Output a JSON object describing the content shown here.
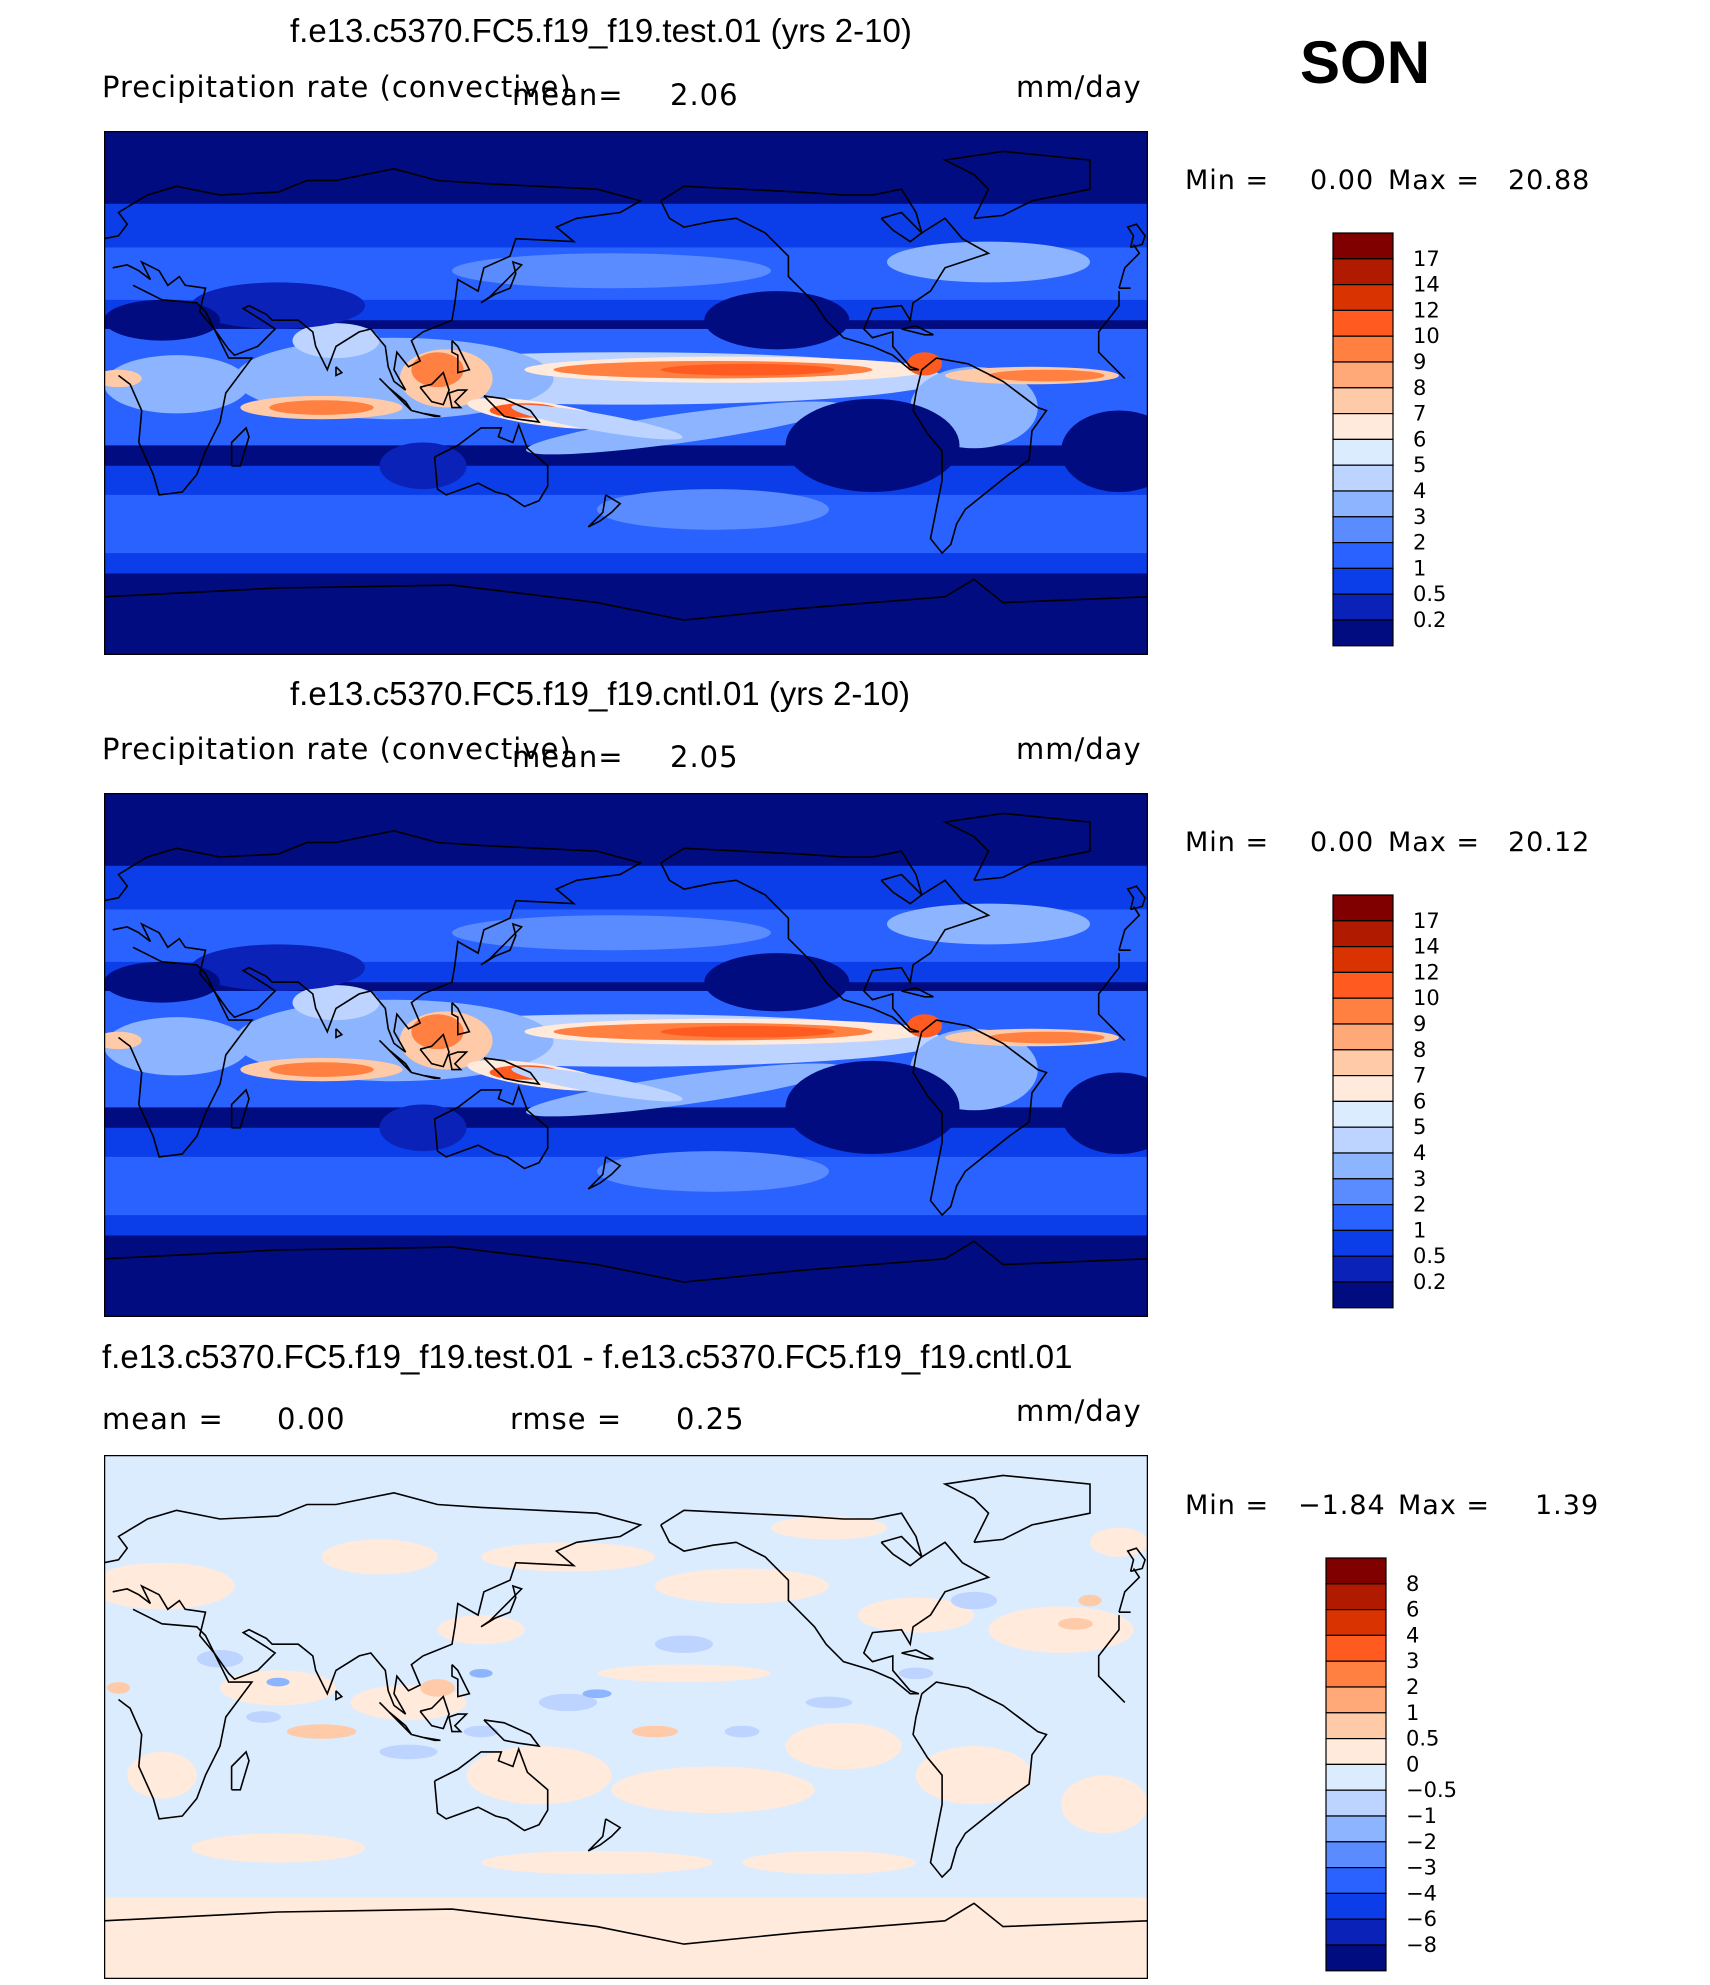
{
  "season": "SON",
  "panels": [
    {
      "title": "f.e13.c5370.FC5.f19_f19.test.01 (yrs 2-10)",
      "variable": "Precipitation rate (convective)",
      "mean_label": "mean=",
      "mean_value": "2.06",
      "units": "mm/day",
      "min_label": "Min =",
      "min_value": "0.00",
      "max_label": "Max =",
      "max_value": "20.88",
      "colorbar": {
        "labels": [
          "17",
          "14",
          "12",
          "10",
          "9",
          "8",
          "7",
          "6",
          "5",
          "4",
          "3",
          "2",
          "1",
          "0.5",
          "0.2"
        ],
        "colors": [
          "#800000",
          "#b01b00",
          "#d83300",
          "#ff5a20",
          "#ff8040",
          "#ffa878",
          "#ffcaa8",
          "#ffeadc",
          "#dcecff",
          "#bcd4ff",
          "#8cb4ff",
          "#5a8cff",
          "#2a62ff",
          "#0b3ee8",
          "#0a22b8",
          "#000c80"
        ]
      }
    },
    {
      "title": "f.e13.c5370.FC5.f19_f19.cntl.01 (yrs 2-10)",
      "variable": "Precipitation rate (convective)",
      "mean_label": "mean=",
      "mean_value": "2.05",
      "units": "mm/day",
      "min_label": "Min =",
      "min_value": "0.00",
      "max_label": "Max =",
      "max_value": "20.12",
      "colorbar": {
        "labels": [
          "17",
          "14",
          "12",
          "10",
          "9",
          "8",
          "7",
          "6",
          "5",
          "4",
          "3",
          "2",
          "1",
          "0.5",
          "0.2"
        ],
        "colors": [
          "#800000",
          "#b01b00",
          "#d83300",
          "#ff5a20",
          "#ff8040",
          "#ffa878",
          "#ffcaa8",
          "#ffeadc",
          "#dcecff",
          "#bcd4ff",
          "#8cb4ff",
          "#5a8cff",
          "#2a62ff",
          "#0b3ee8",
          "#0a22b8",
          "#000c80"
        ]
      }
    },
    {
      "title": "f.e13.c5370.FC5.f19_f19.test.01 - f.e13.c5370.FC5.f19_f19.cntl.01",
      "mean_label": "mean =",
      "mean_value": "0.00",
      "rmse_label": "rmse =",
      "rmse_value": "0.25",
      "units": "mm/day",
      "min_label": "Min =",
      "min_value": "−1.84",
      "max_label": "Max =",
      "max_value": "1.39",
      "colorbar": {
        "labels": [
          "8",
          "6",
          "4",
          "3",
          "2",
          "1",
          "0.5",
          "0",
          "−0.5",
          "−1",
          "−2",
          "−3",
          "−4",
          "−6",
          "−8"
        ],
        "colors": [
          "#800000",
          "#b01b00",
          "#d83300",
          "#ff5a20",
          "#ff8040",
          "#ffa878",
          "#ffcaa8",
          "#ffeadc",
          "#dcecff",
          "#bcd4ff",
          "#8cb4ff",
          "#5a8cff",
          "#2a62ff",
          "#0b3ee8",
          "#0a22b8",
          "#000c80"
        ]
      }
    }
  ]
}
